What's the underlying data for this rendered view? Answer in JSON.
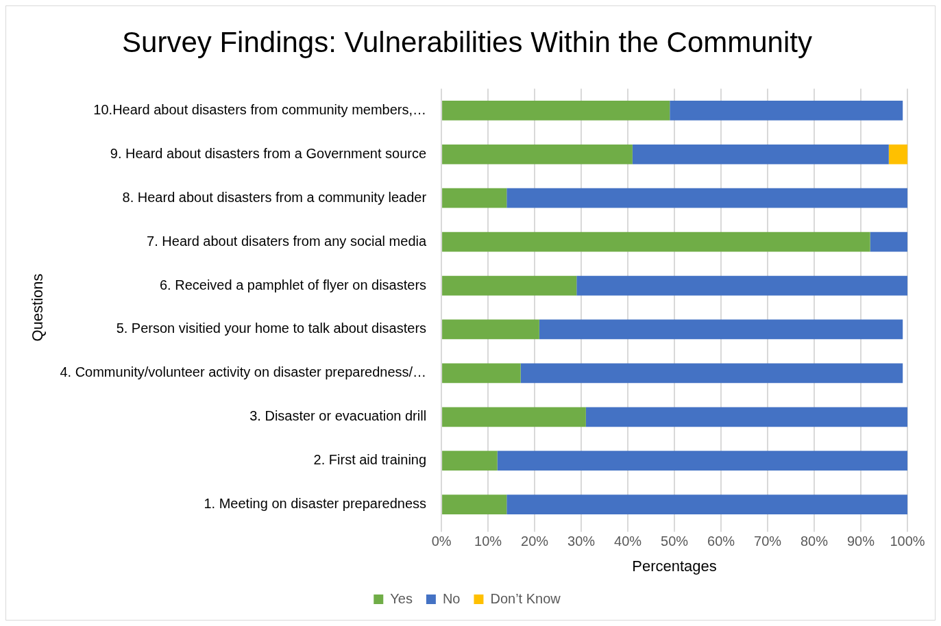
{
  "chart_data": {
    "type": "bar",
    "orientation": "horizontal",
    "stacked": true,
    "title": "Survey Findings: Vulnerabilities Within the Community",
    "xlabel": "Percentages",
    "ylabel": "Questions",
    "categories": [
      "10.Heard about disasters from community members,…",
      "9. Heard about disasters from a Government source",
      "8. Heard about disasters from a community leader",
      "7. Heard about disaters from any social media",
      "6. Received a pamphlet of flyer on disasters",
      "5. Person visitied your home to talk about disasters",
      "4. Community/volunteer activity on disaster preparedness/…",
      "3. Disaster or evacuation drill",
      "2. First aid training",
      "1. Meeting on disaster preparedness"
    ],
    "series": [
      {
        "name": "Yes",
        "color": "#70ad47",
        "values": [
          49,
          41,
          14,
          92,
          29,
          21,
          17,
          31,
          12,
          14
        ]
      },
      {
        "name": "No",
        "color": "#4472c4",
        "values": [
          50,
          55,
          86,
          8,
          71,
          78,
          82,
          69,
          88,
          86
        ]
      },
      {
        "name": "Don’t Know",
        "color": "#ffc000",
        "values": [
          null,
          4,
          null,
          null,
          null,
          null,
          null,
          null,
          null,
          null
        ]
      }
    ],
    "xlim": [
      0,
      100
    ],
    "xticks": [
      {
        "value": 0,
        "label": "0%"
      },
      {
        "value": 10,
        "label": "10%"
      },
      {
        "value": 20,
        "label": "20%"
      },
      {
        "value": 30,
        "label": "30%"
      },
      {
        "value": 40,
        "label": "40%"
      },
      {
        "value": 50,
        "label": "50%"
      },
      {
        "value": 60,
        "label": "60%"
      },
      {
        "value": 70,
        "label": "70%"
      },
      {
        "value": 80,
        "label": "80%"
      },
      {
        "value": 90,
        "label": "90%"
      },
      {
        "value": 100,
        "label": "100%"
      }
    ],
    "grid": "x",
    "legend": "bottom"
  }
}
